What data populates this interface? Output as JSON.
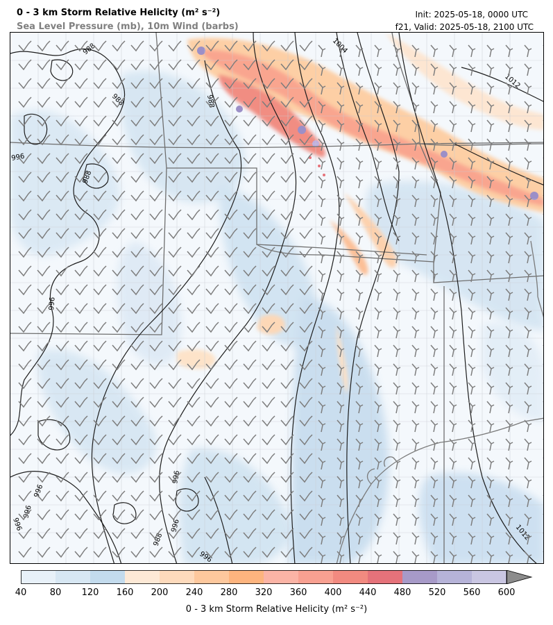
{
  "header": {
    "title": "0 - 3 km Storm Relative Helicity (m² s⁻²)",
    "subtitle": "Sea Level Pressure (mb), 10m Wind (barbs)",
    "init": "Init: 2025-05-18, 0000 UTC",
    "valid": "f21, Valid: 2025-05-18, 2100 UTC"
  },
  "map": {
    "isobar_labels": [
      "1004",
      "1012",
      "988",
      "988",
      "988",
      "996",
      "988",
      "996",
      "996",
      "996",
      "996",
      "996",
      "996",
      "988",
      "996",
      "1012"
    ]
  },
  "colorbar": {
    "label": "0 - 3 km Storm Relative Helicity (m² s⁻²)",
    "ticks": [
      "40",
      "80",
      "120",
      "160",
      "200",
      "240",
      "280",
      "320",
      "360",
      "400",
      "440",
      "480",
      "520",
      "560",
      "600"
    ],
    "colors": [
      "#e8f1f9",
      "#d7e7f3",
      "#c3dbed",
      "#fde9d6",
      "#fddabc",
      "#fdc89d",
      "#fdb47e",
      "#fbb4a6",
      "#f8a091",
      "#f28a80",
      "#e5727a",
      "#a79ac8",
      "#b6b3d8",
      "#c9c6e2"
    ],
    "extend_color": "#8c8c8c"
  }
}
